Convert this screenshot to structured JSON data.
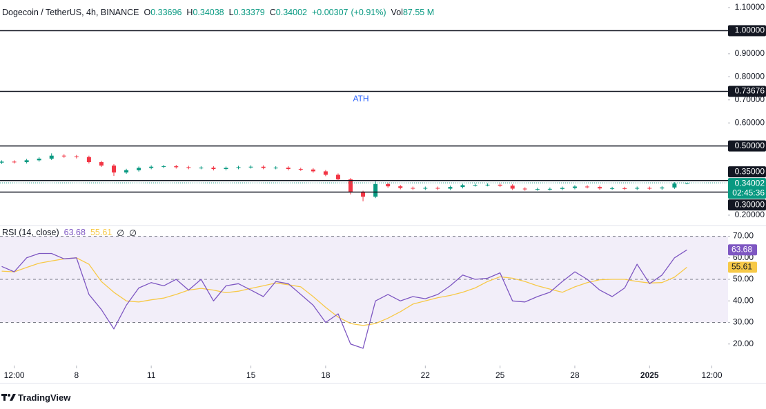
{
  "chart_data": {
    "type": "candlestick",
    "title": "Dogecoin / TetherUS, 4h, BINANCE",
    "ohlc": [
      {
        "key": "O",
        "value": 0.33696
      },
      {
        "key": "H",
        "value": 0.34038
      },
      {
        "key": "L",
        "value": 0.33379
      },
      {
        "key": "C",
        "value": 0.34002
      }
    ],
    "change": {
      "value": 0.00307,
      "label": "+0.00307"
    },
    "change_pct": {
      "value": 0.91,
      "label": "(+0.91%)"
    },
    "volume": {
      "key": "Vol",
      "value": 87.55,
      "label": "87.55 M"
    },
    "up_color": "#089981",
    "down_color": "#f23645",
    "x": [
      5,
      5.5,
      6,
      6.5,
      7,
      7.5,
      8,
      8.5,
      9,
      9.5,
      10,
      10.5,
      11,
      11.5,
      12,
      12.5,
      13,
      13.5,
      14,
      14.5,
      15,
      15.5,
      16,
      16.5,
      17,
      17.5,
      18,
      18.5,
      19,
      19.5,
      20,
      20.5,
      21,
      21.5,
      22,
      22.5,
      23,
      23.5,
      24,
      24.5,
      25,
      25.5,
      26,
      26.5,
      27,
      27.5,
      28,
      28.5,
      29,
      29.5,
      30,
      30.5,
      31,
      31.5,
      32,
      32.5
    ],
    "open": [
      0.428,
      0.432,
      0.43,
      0.438,
      0.445,
      0.458,
      0.455,
      0.452,
      0.43,
      0.415,
      0.385,
      0.395,
      0.405,
      0.41,
      0.412,
      0.408,
      0.405,
      0.406,
      0.4,
      0.405,
      0.408,
      0.41,
      0.405,
      0.406,
      0.4,
      0.398,
      0.39,
      0.375,
      0.355,
      0.3,
      0.28,
      0.335,
      0.325,
      0.318,
      0.315,
      0.318,
      0.315,
      0.322,
      0.33,
      0.331,
      0.332,
      0.328,
      0.315,
      0.312,
      0.313,
      0.314,
      0.318,
      0.324,
      0.322,
      0.316,
      0.317,
      0.315,
      0.318,
      0.316,
      0.32,
      0.33696
    ],
    "high": [
      0.438,
      0.438,
      0.444,
      0.451,
      0.468,
      0.464,
      0.461,
      0.458,
      0.436,
      0.421,
      0.401,
      0.411,
      0.416,
      0.418,
      0.418,
      0.414,
      0.412,
      0.412,
      0.411,
      0.414,
      0.416,
      0.416,
      0.412,
      0.412,
      0.406,
      0.404,
      0.396,
      0.381,
      0.361,
      0.306,
      0.347,
      0.341,
      0.331,
      0.324,
      0.324,
      0.324,
      0.328,
      0.336,
      0.337,
      0.338,
      0.338,
      0.334,
      0.321,
      0.319,
      0.32,
      0.324,
      0.33,
      0.33,
      0.328,
      0.323,
      0.323,
      0.324,
      0.324,
      0.326,
      0.343,
      0.34038
    ],
    "low": [
      0.422,
      0.424,
      0.424,
      0.432,
      0.439,
      0.449,
      0.446,
      0.424,
      0.409,
      0.37,
      0.379,
      0.389,
      0.399,
      0.404,
      0.402,
      0.399,
      0.399,
      0.394,
      0.394,
      0.399,
      0.402,
      0.399,
      0.399,
      0.394,
      0.392,
      0.384,
      0.369,
      0.349,
      0.29,
      0.26,
      0.274,
      0.319,
      0.312,
      0.309,
      0.309,
      0.309,
      0.309,
      0.316,
      0.324,
      0.325,
      0.322,
      0.309,
      0.306,
      0.306,
      0.307,
      0.308,
      0.312,
      0.316,
      0.31,
      0.31,
      0.309,
      0.309,
      0.31,
      0.31,
      0.314,
      0.33379
    ],
    "close": [
      0.432,
      0.43,
      0.438,
      0.445,
      0.458,
      0.455,
      0.452,
      0.43,
      0.415,
      0.385,
      0.395,
      0.405,
      0.41,
      0.412,
      0.408,
      0.405,
      0.406,
      0.4,
      0.405,
      0.408,
      0.41,
      0.405,
      0.406,
      0.4,
      0.398,
      0.39,
      0.375,
      0.355,
      0.3,
      0.28,
      0.335,
      0.325,
      0.318,
      0.315,
      0.318,
      0.315,
      0.322,
      0.33,
      0.331,
      0.332,
      0.328,
      0.315,
      0.312,
      0.313,
      0.314,
      0.318,
      0.324,
      0.322,
      0.316,
      0.317,
      0.315,
      0.318,
      0.316,
      0.32,
      0.33696,
      0.34002
    ],
    "countdown": "02:45:36",
    "xlim": [
      4.93,
      34.15
    ],
    "xticks": [
      {
        "value": 5.5,
        "label": "12:00"
      },
      8,
      11,
      15,
      18,
      22,
      25,
      28,
      {
        "value": 31,
        "label": "2025",
        "bold": true
      },
      {
        "value": 33.5,
        "label": "12:00"
      }
    ],
    "ylim": [
      0.161,
      1.133
    ],
    "yticks": [
      {
        "value": 1.1,
        "label": "1.10000"
      },
      {
        "value": 0.9,
        "label": "0.90000"
      },
      {
        "value": 0.8,
        "label": "0.80000"
      },
      {
        "value": 0.7,
        "label": "0.70000"
      },
      {
        "value": 0.6,
        "label": "0.60000"
      },
      {
        "value": 0.2,
        "label": "0.20000"
      }
    ],
    "levels": [
      {
        "value": 1.0,
        "label": "1.00000"
      },
      {
        "value": 0.73676,
        "label": "0.73676"
      },
      {
        "value": 0.5,
        "label": "0.50000"
      },
      {
        "value": 0.35,
        "label": "0.35000"
      },
      {
        "value": 0.3,
        "label": "0.30000"
      }
    ],
    "annotation": "ATH",
    "rsi": {
      "title": "RSI (14, close)",
      "color": "#7e57c2",
      "ma_color": "#f7c948",
      "legend_extra": [
        "∅",
        "∅"
      ],
      "values": [
        56,
        53.5,
        60,
        62,
        62,
        59.5,
        60,
        43,
        36,
        27,
        38,
        46,
        48.5,
        47,
        50,
        45,
        50,
        40,
        47,
        48,
        45,
        42,
        49,
        48,
        43,
        38,
        30,
        34,
        20,
        18,
        40,
        43,
        40,
        42,
        41,
        43,
        47,
        52,
        50,
        50.5,
        53,
        40,
        39.5,
        42,
        44,
        49,
        53.5,
        50,
        45,
        42,
        46,
        57,
        48,
        52,
        60,
        63.68
      ],
      "ma_values": [
        53.8,
        53.5,
        55.5,
        57.5,
        58.5,
        59.5,
        60,
        57,
        49,
        44,
        40,
        39.5,
        40.5,
        41.3,
        43,
        45,
        45.8,
        45,
        43.8,
        44.5,
        45.8,
        47,
        48.3,
        47.5,
        46.5,
        42,
        37,
        32.5,
        29.5,
        28.6,
        29.5,
        32,
        35,
        38.5,
        40,
        41.5,
        42.5,
        44,
        46,
        49,
        51.2,
        50.5,
        49,
        47,
        45.5,
        44,
        46.5,
        48.5,
        49.8,
        50,
        50,
        49,
        48.3,
        48.5,
        51,
        55.61
      ],
      "ylim": [
        10,
        74
      ],
      "yticks": [
        {
          "value": 70,
          "label": "70.00"
        },
        {
          "value": 60,
          "label": "60.00"
        },
        {
          "value": 50,
          "label": "50.00"
        },
        {
          "value": 40,
          "label": "40.00"
        },
        {
          "value": 30,
          "label": "30.00"
        },
        {
          "value": 20,
          "label": "20.00"
        }
      ],
      "band": [
        30,
        70
      ],
      "levels": [
        70,
        50,
        30
      ]
    },
    "brand": "TradingView"
  }
}
